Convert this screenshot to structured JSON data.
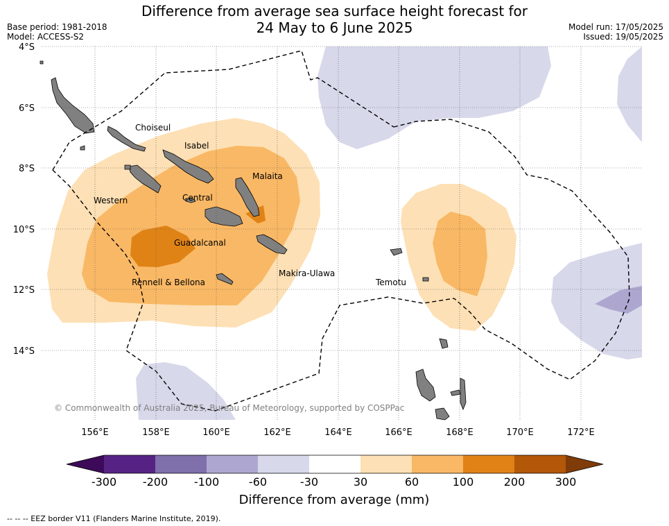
{
  "header": {
    "title_line1": "Difference from average sea surface height forecast for",
    "title_line2": "24 May to 6 June 2025",
    "base_period": "Base period: 1981-2018",
    "model": "Model: ACCESS-S2",
    "model_run": "Model run: 17/05/2025",
    "issued": "Issued: 19/05/2025"
  },
  "axes": {
    "lat_labels": [
      "4°S",
      "6°S",
      "8°S",
      "10°S",
      "12°S",
      "14°S"
    ],
    "lon_labels": [
      "156°E",
      "158°E",
      "160°E",
      "162°E",
      "164°E",
      "166°E",
      "168°E",
      "170°E",
      "172°E"
    ]
  },
  "places": [
    "Choiseul",
    "Isabel",
    "Malaita",
    "Western",
    "Central",
    "Guadalcanal",
    "Makira-Ulawa",
    "Rennell & Bellona",
    "Temotu"
  ],
  "copyright": "© Commonwealth of Australia 2025, Bureau of Meteorology, supported by COSPPac",
  "colorbar": {
    "ticks": [
      "-300",
      "-200",
      "-100",
      "-60",
      "-30",
      "30",
      "60",
      "100",
      "200",
      "300"
    ],
    "colors": [
      "#3d0a5a",
      "#562384",
      "#7f6fab",
      "#ada7d0",
      "#d7d8ea",
      "#ffffff",
      "#fde0b5",
      "#f9b865",
      "#e08316",
      "#b35709",
      "#7f3b08"
    ],
    "label": "Difference from average (mm)"
  },
  "legend_note": "--  --  -- EEZ border V11 (Flanders Marine Institute, 2019)."
}
